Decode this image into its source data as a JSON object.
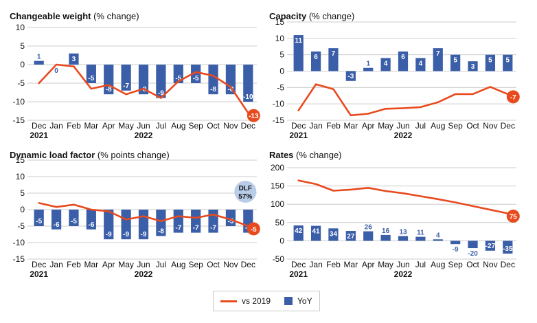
{
  "colors": {
    "bar": "#3a5ea8",
    "line": "#e84a1e",
    "grid": "#cccccc",
    "badge": "#b9cde9",
    "text": "#111111"
  },
  "legend": {
    "line_label": "vs 2019",
    "bar_label": "YoY"
  },
  "chart_data": [
    {
      "type": "bar",
      "title_bold": "Changeable weight",
      "title_rest": " (% change)",
      "categories": [
        "Dec",
        "Jan",
        "Feb",
        "Mar",
        "Apr",
        "May",
        "Jun",
        "Jul",
        "Aug",
        "Sep",
        "Oct",
        "Nov",
        "Dec"
      ],
      "year_labels": [
        "2021",
        "2022"
      ],
      "yticks": [
        10,
        5,
        0,
        -5,
        -10,
        -15
      ],
      "ylim": [
        -15,
        10
      ],
      "series": [
        {
          "name": "YoY",
          "type": "bar",
          "values": [
            1,
            0,
            3,
            -5,
            -8,
            -7,
            -8,
            -9,
            -5,
            -5,
            -8,
            -8,
            -10
          ]
        },
        {
          "name": "vs 2019",
          "type": "line",
          "values": [
            -5,
            0,
            -0.5,
            -6.5,
            -5.5,
            -8,
            -6.5,
            -9,
            -4.5,
            -2,
            -3,
            -6,
            -13
          ]
        }
      ],
      "bar_labels": [
        "1",
        "0",
        "3",
        "-5",
        "-8",
        "-7",
        "-8",
        "-9",
        "-5",
        "-5",
        "-8",
        "-8",
        "-10"
      ],
      "end_label": "-13"
    },
    {
      "type": "bar",
      "title_bold": "Capacity",
      "title_rest": " (% change)",
      "categories": [
        "Dec",
        "Jan",
        "Feb",
        "Mar",
        "Apr",
        "May",
        "Jun",
        "Jul",
        "Aug",
        "Sep",
        "Oct",
        "Nov",
        "Dec"
      ],
      "year_labels": [
        "2021",
        "2022"
      ],
      "yticks": [
        15,
        10,
        5,
        0,
        -5,
        -10,
        -15
      ],
      "ylim": [
        -15,
        15
      ],
      "series": [
        {
          "name": "YoY",
          "type": "bar",
          "values": [
            11,
            6,
            7,
            -3,
            1,
            4,
            6,
            4,
            7,
            5,
            3,
            5,
            5
          ]
        },
        {
          "name": "vs 2019",
          "type": "line",
          "values": [
            -12,
            -4,
            -5.5,
            -13.5,
            -13,
            -11.5,
            -11.3,
            -11,
            -9.5,
            -7,
            -7,
            -4.8,
            -7
          ]
        }
      ],
      "bar_labels": [
        "11",
        "6",
        "7",
        "-3",
        "1",
        "4",
        "6",
        "4",
        "7",
        "5",
        "3",
        "5",
        "5"
      ],
      "end_label": "-7"
    },
    {
      "type": "bar",
      "title_bold": "Dynamic load factor",
      "title_rest": " (% points change)",
      "categories": [
        "Dec",
        "Jan",
        "Feb",
        "Mar",
        "Apr",
        "May",
        "Jun",
        "Jul",
        "Aug",
        "Sep",
        "Oct",
        "Nov",
        "Dec"
      ],
      "year_labels": [
        "2021",
        "2022"
      ],
      "yticks": [
        15,
        10,
        5,
        0,
        -5,
        -10,
        -15
      ],
      "ylim": [
        -15,
        15
      ],
      "series": [
        {
          "name": "YoY",
          "type": "bar",
          "values": [
            -5,
            -6,
            -5,
            -6,
            -9,
            -9,
            -9,
            -8,
            -7,
            -7,
            -7,
            -5,
            -7
          ]
        },
        {
          "name": "vs 2019",
          "type": "line",
          "values": [
            2,
            0.8,
            1.5,
            0,
            -0.5,
            -3,
            -2,
            -3.5,
            -2,
            -2.5,
            -1.5,
            -3,
            -5
          ]
        }
      ],
      "bar_labels": [
        "-5",
        "-6",
        "-5",
        "-6",
        "-9",
        "-9",
        "-9",
        "-8",
        "-7",
        "-7",
        "-7",
        "-5",
        "-7"
      ],
      "end_label": "-5",
      "badge": {
        "line1": "DLF",
        "line2": "57%"
      }
    },
    {
      "type": "bar",
      "title_bold": "Rates",
      "title_rest": " (% change)",
      "categories": [
        "Dec",
        "Jan",
        "Feb",
        "Mar",
        "Apr",
        "May",
        "Jun",
        "Jul",
        "Aug",
        "Sep",
        "Oct",
        "Nov",
        "Dec"
      ],
      "year_labels": [
        "2021",
        "2022"
      ],
      "yticks": [
        200,
        150,
        100,
        50,
        0,
        -50
      ],
      "ylim": [
        -50,
        200
      ],
      "series": [
        {
          "name": "YoY",
          "type": "bar",
          "values": [
            42,
            41,
            34,
            27,
            26,
            16,
            13,
            11,
            4,
            -9,
            -20,
            -27,
            -35
          ]
        },
        {
          "name": "vs 2019",
          "type": "line",
          "values": [
            165,
            155,
            137,
            140,
            145,
            136,
            130,
            122,
            114,
            105,
            95,
            85,
            75
          ]
        }
      ],
      "bar_labels": [
        "42",
        "41",
        "34",
        "27",
        "26",
        "16",
        "13",
        "11",
        "4",
        "-9",
        "-20",
        "-27",
        "-35"
      ],
      "end_label": "75"
    }
  ]
}
